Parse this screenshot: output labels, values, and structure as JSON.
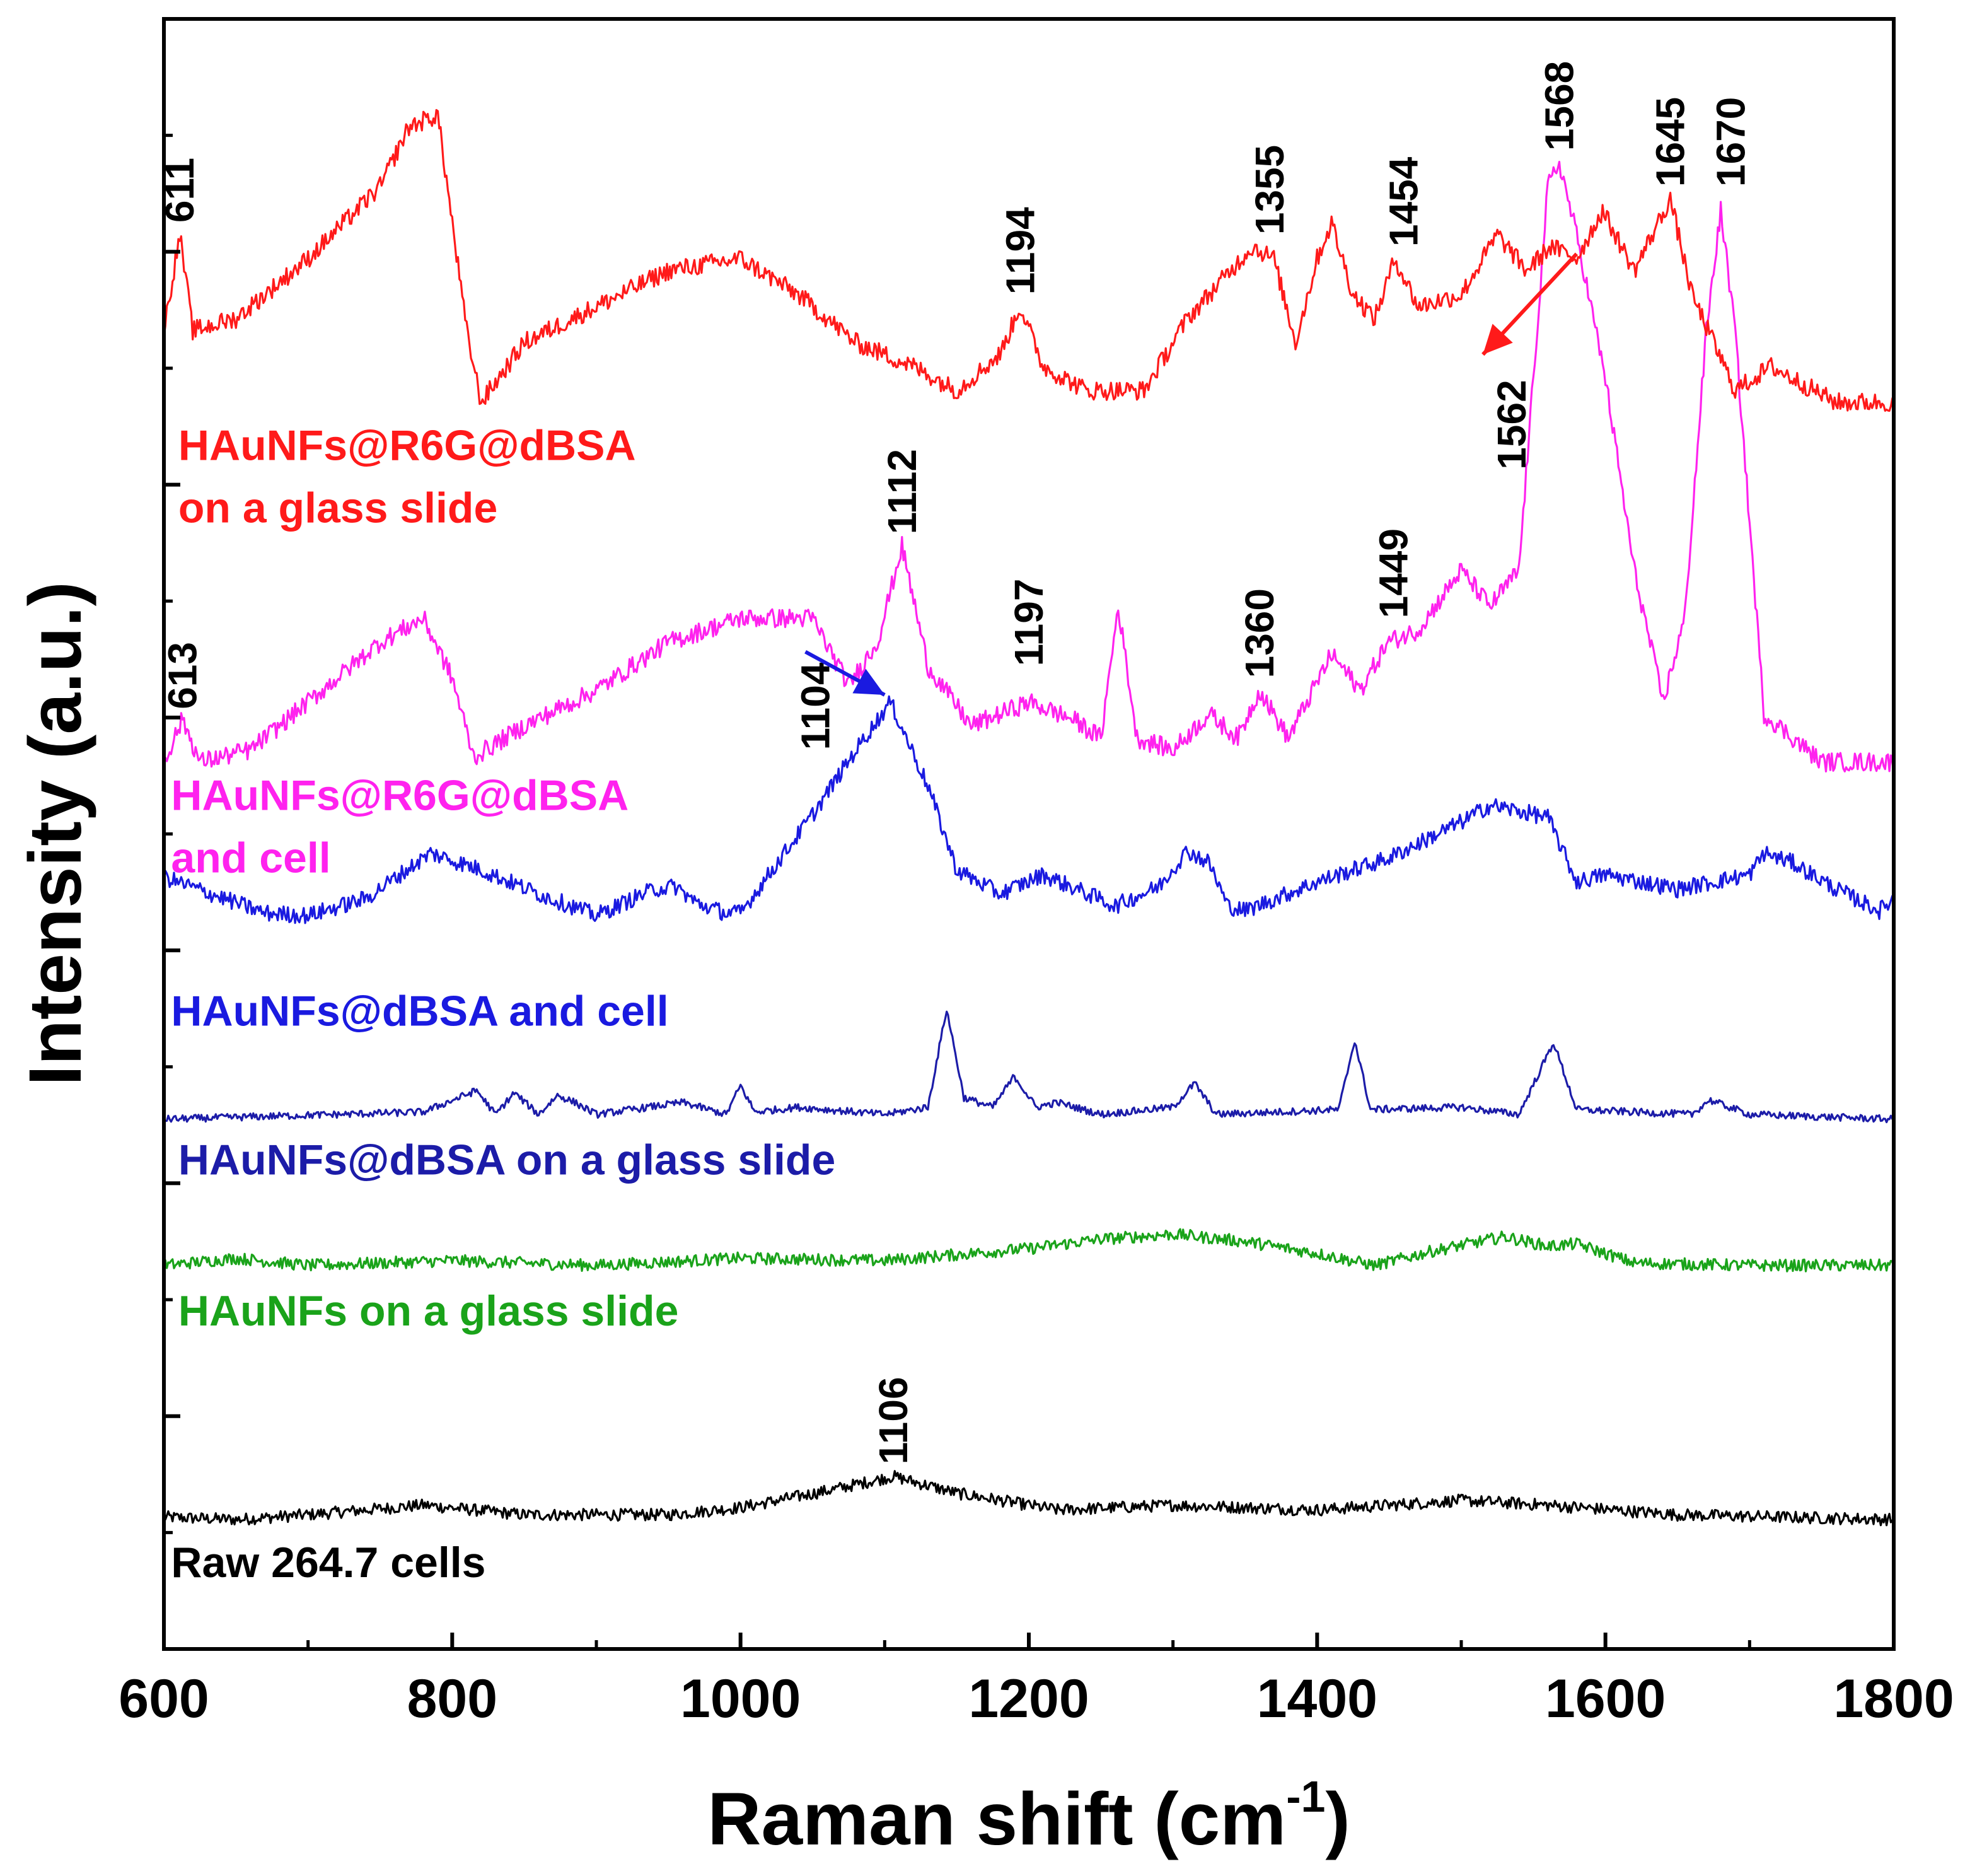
{
  "chart_data": {
    "type": "line",
    "title": "",
    "xlabel": "Raman shift (cm",
    "xlabel_sup": "-1",
    "xlabel_end": ")",
    "ylabel": "Intensity (a.u.)",
    "xlim": [
      600,
      1800
    ],
    "x_ticks": [
      600,
      800,
      1000,
      1200,
      1400,
      1600,
      1800
    ],
    "y_tick_labels": "none",
    "grid": false,
    "legend": "inline labels beside each trace",
    "series": [
      {
        "name": "Raw 264.7 cells",
        "color": "#000000",
        "baseline": 0.5,
        "noise": 0.25,
        "points": [
          [
            600,
            0.5
          ],
          [
            650,
            0.4
          ],
          [
            700,
            0.6
          ],
          [
            780,
            1.0
          ],
          [
            850,
            0.6
          ],
          [
            950,
            0.6
          ],
          [
            1000,
            0.9
          ],
          [
            1060,
            1.6
          ],
          [
            1106,
            2.2
          ],
          [
            1150,
            1.5
          ],
          [
            1220,
            0.8
          ],
          [
            1300,
            1.0
          ],
          [
            1400,
            0.8
          ],
          [
            1500,
            1.2
          ],
          [
            1560,
            1.0
          ],
          [
            1650,
            0.6
          ],
          [
            1800,
            0.4
          ]
        ]
      },
      {
        "name": "HAuNFs on a glass slide",
        "color": "#1aa31a",
        "baseline": 11.0,
        "noise": 0.25,
        "points": [
          [
            600,
            11.0
          ],
          [
            650,
            11.3
          ],
          [
            700,
            11.0
          ],
          [
            800,
            11.2
          ],
          [
            900,
            11.0
          ],
          [
            1000,
            11.3
          ],
          [
            1100,
            11.2
          ],
          [
            1200,
            11.7
          ],
          [
            1250,
            12.1
          ],
          [
            1300,
            12.3
          ],
          [
            1350,
            12.0
          ],
          [
            1400,
            11.5
          ],
          [
            1440,
            11.0
          ],
          [
            1480,
            11.6
          ],
          [
            1530,
            12.2
          ],
          [
            1560,
            11.8
          ],
          [
            1580,
            11.9
          ],
          [
            1620,
            11.1
          ],
          [
            1700,
            11.0
          ],
          [
            1800,
            11.0
          ]
        ]
      },
      {
        "name": "HAuNFs@dBSA on a glass slide",
        "color": "#1c1ca8",
        "baseline": 17.1,
        "noise": 0.15,
        "points": [
          [
            600,
            17.1
          ],
          [
            780,
            17.4
          ],
          [
            817,
            18.3
          ],
          [
            830,
            17.3
          ],
          [
            843,
            18.2
          ],
          [
            860,
            17.3
          ],
          [
            873,
            18.1
          ],
          [
            885,
            17.8
          ],
          [
            900,
            17.3
          ],
          [
            960,
            17.8
          ],
          [
            990,
            17.3
          ],
          [
            1000,
            18.5
          ],
          [
            1010,
            17.4
          ],
          [
            1040,
            17.6
          ],
          [
            1100,
            17.3
          ],
          [
            1130,
            17.6
          ],
          [
            1143,
            21.7
          ],
          [
            1155,
            18.0
          ],
          [
            1175,
            17.6
          ],
          [
            1190,
            18.9
          ],
          [
            1205,
            17.6
          ],
          [
            1220,
            17.8
          ],
          [
            1250,
            17.3
          ],
          [
            1300,
            17.6
          ],
          [
            1315,
            18.6
          ],
          [
            1330,
            17.3
          ],
          [
            1415,
            17.5
          ],
          [
            1426,
            20.4
          ],
          [
            1437,
            17.5
          ],
          [
            1500,
            17.6
          ],
          [
            1540,
            17.3
          ],
          [
            1564,
            20.3
          ],
          [
            1580,
            17.5
          ],
          [
            1660,
            17.3
          ],
          [
            1672,
            17.9
          ],
          [
            1700,
            17.3
          ],
          [
            1800,
            17.1
          ]
        ]
      },
      {
        "name": "HAuNFs@dBSA and cell",
        "color": "#1a1ae0",
        "baseline": 24.0,
        "noise": 0.35,
        "points": [
          [
            600,
            27.2
          ],
          [
            670,
            25.7
          ],
          [
            700,
            25.6
          ],
          [
            740,
            26.3
          ],
          [
            785,
            28.2
          ],
          [
            820,
            27.5
          ],
          [
            860,
            26.5
          ],
          [
            900,
            25.6
          ],
          [
            940,
            26.7
          ],
          [
            955,
            26.8
          ],
          [
            970,
            26.1
          ],
          [
            990,
            25.7
          ],
          [
            1000,
            25.7
          ],
          [
            1050,
            29.8
          ],
          [
            1080,
            32.5
          ],
          [
            1104,
            34.5
          ],
          [
            1130,
            31.0
          ],
          [
            1150,
            27.5
          ],
          [
            1180,
            26.5
          ],
          [
            1210,
            27.3
          ],
          [
            1260,
            26.0
          ],
          [
            1290,
            26.8
          ],
          [
            1310,
            28.3
          ],
          [
            1325,
            27.8
          ],
          [
            1338,
            26.0
          ],
          [
            1350,
            25.8
          ],
          [
            1400,
            27.0
          ],
          [
            1450,
            28.0
          ],
          [
            1500,
            29.5
          ],
          [
            1520,
            30.2
          ],
          [
            1560,
            29.7
          ],
          [
            1580,
            27.0
          ],
          [
            1600,
            27.3
          ],
          [
            1650,
            26.7
          ],
          [
            1700,
            27.3
          ],
          [
            1710,
            28.2
          ],
          [
            1730,
            27.8
          ],
          [
            1760,
            26.7
          ],
          [
            1790,
            25.8
          ],
          [
            1800,
            26.3
          ]
        ]
      },
      {
        "name": "HAuNFs@R6G@dBSA and cell",
        "color": "#ff22ee",
        "baseline": 32.0,
        "noise": 0.4,
        "points": [
          [
            600,
            32.0
          ],
          [
            613,
            33.8
          ],
          [
            625,
            32.0
          ],
          [
            660,
            32.5
          ],
          [
            700,
            34.5
          ],
          [
            750,
            37.0
          ],
          [
            780,
            38.0
          ],
          [
            800,
            35.5
          ],
          [
            815,
            32.2
          ],
          [
            850,
            33.5
          ],
          [
            900,
            35.0
          ],
          [
            950,
            37.0
          ],
          [
            1000,
            38.0
          ],
          [
            1050,
            38.0
          ],
          [
            1075,
            35.2
          ],
          [
            1095,
            37.0
          ],
          [
            1112,
            41.0
          ],
          [
            1130,
            36.0
          ],
          [
            1160,
            33.5
          ],
          [
            1200,
            34.5
          ],
          [
            1230,
            33.8
          ],
          [
            1250,
            33.0
          ],
          [
            1262,
            38.5
          ],
          [
            1275,
            33.0
          ],
          [
            1300,
            32.5
          ],
          [
            1325,
            34.0
          ],
          [
            1345,
            33.0
          ],
          [
            1360,
            35.0
          ],
          [
            1380,
            33.0
          ],
          [
            1410,
            36.5
          ],
          [
            1430,
            35.0
          ],
          [
            1449,
            37.0
          ],
          [
            1470,
            37.5
          ],
          [
            1500,
            40.0
          ],
          [
            1520,
            38.5
          ],
          [
            1540,
            40.0
          ],
          [
            1560,
            56.0
          ],
          [
            1568,
            57.0
          ],
          [
            1580,
            54.0
          ],
          [
            1600,
            48.0
          ],
          [
            1620,
            40.0
          ],
          [
            1640,
            34.5
          ],
          [
            1655,
            38.0
          ],
          [
            1670,
            50.0
          ],
          [
            1680,
            55.0
          ],
          [
            1690,
            50.0
          ],
          [
            1710,
            34.0
          ],
          [
            1750,
            32.0
          ],
          [
            1800,
            32.0
          ]
        ]
      },
      {
        "name": "HAuNFs@R6G@dBSA on a glass slide",
        "color": "#ff1a1a",
        "baseline": 47.0,
        "noise": 0.4,
        "points": [
          [
            600,
            50.0
          ],
          [
            611,
            54.0
          ],
          [
            620,
            50.0
          ],
          [
            650,
            50.5
          ],
          [
            700,
            53.0
          ],
          [
            750,
            56.0
          ],
          [
            770,
            58.5
          ],
          [
            790,
            59.0
          ],
          [
            810,
            50.0
          ],
          [
            820,
            47.0
          ],
          [
            850,
            49.5
          ],
          [
            900,
            51.0
          ],
          [
            950,
            52.5
          ],
          [
            1000,
            53.0
          ],
          [
            1040,
            51.5
          ],
          [
            1080,
            49.5
          ],
          [
            1120,
            48.5
          ],
          [
            1150,
            47.5
          ],
          [
            1180,
            49.0
          ],
          [
            1194,
            51.0
          ],
          [
            1210,
            48.5
          ],
          [
            1240,
            47.5
          ],
          [
            1280,
            47.5
          ],
          [
            1310,
            50.5
          ],
          [
            1355,
            53.5
          ],
          [
            1370,
            53.0
          ],
          [
            1385,
            49.5
          ],
          [
            1400,
            53.0
          ],
          [
            1410,
            54.5
          ],
          [
            1425,
            51.5
          ],
          [
            1440,
            50.5
          ],
          [
            1454,
            53.0
          ],
          [
            1470,
            51.0
          ],
          [
            1500,
            51.5
          ],
          [
            1525,
            54.0
          ],
          [
            1545,
            52.5
          ],
          [
            1562,
            53.5
          ],
          [
            1580,
            53.0
          ],
          [
            1598,
            55.0
          ],
          [
            1620,
            52.5
          ],
          [
            1645,
            55.5
          ],
          [
            1660,
            51.5
          ],
          [
            1690,
            47.5
          ],
          [
            1715,
            48.5
          ],
          [
            1760,
            47.0
          ],
          [
            1800,
            47.0
          ]
        ]
      }
    ],
    "inline_labels": [
      {
        "text": "HAuNFs@R6G@dBSA",
        "series": "HAuNFs@R6G@dBSA on a glass slide",
        "x": 610,
        "y": 44.6
      },
      {
        "text": "on a glass slide",
        "series": "HAuNFs@R6G@dBSA on a glass slide",
        "x": 610,
        "y": 42.0
      },
      {
        "text": "HAuNFs@R6G@dBSA",
        "series": "HAuNFs@R6G@dBSA and cell",
        "x": 605,
        "y": 30.0
      },
      {
        "text": "and cell",
        "series": "HAuNFs@R6G@dBSA and cell",
        "x": 605,
        "y": 27.4
      },
      {
        "text": "HAuNFs@dBSA and cell",
        "series": "HAuNFs@dBSA and cell",
        "x": 605,
        "y": 21.0
      },
      {
        "text": "HAuNFs@dBSA on a glass slide",
        "series": "HAuNFs@dBSA on a glass slide",
        "x": 610,
        "y": 14.8
      },
      {
        "text": "HAuNFs on a glass slide",
        "series": "HAuNFs on a glass slide",
        "x": 610,
        "y": 8.5
      },
      {
        "text": "Raw 264.7 cells",
        "series": "Raw 264.7 cells",
        "x": 605,
        "y": -2.0
      }
    ],
    "peak_annotations": [
      {
        "text": "611",
        "x": 611,
        "y": 54.5
      },
      {
        "text": "1194",
        "x": 1194,
        "y": 51.5
      },
      {
        "text": "1355",
        "x": 1367,
        "y": 54.0
      },
      {
        "text": "1454",
        "x": 1460,
        "y": 53.5
      },
      {
        "text": "1568",
        "x": 1568,
        "y": 57.5
      },
      {
        "text": "1645",
        "x": 1645,
        "y": 56.0
      },
      {
        "text": "1670",
        "x": 1687,
        "y": 56.0
      },
      {
        "text": "1562",
        "x": 1535,
        "y": 44.2
      },
      {
        "text": "613",
        "x": 613,
        "y": 34.2
      },
      {
        "text": "1112",
        "x": 1112,
        "y": 41.5
      },
      {
        "text": "1197",
        "x": 1200,
        "y": 36.0
      },
      {
        "text": "1360",
        "x": 1360,
        "y": 35.5
      },
      {
        "text": "1449",
        "x": 1453,
        "y": 38.0
      },
      {
        "text": "1104",
        "x": 1052,
        "y": 32.5
      },
      {
        "text": "1106",
        "x": 1106,
        "y": 2.7
      }
    ],
    "arrows": [
      {
        "color": "#ff1a1a",
        "from": [
          1580,
          53.2
        ],
        "to": [
          1515,
          49.0
        ]
      },
      {
        "color": "#1a1ae0",
        "from": [
          1045,
          36.6
        ],
        "to": [
          1100,
          34.8
        ]
      }
    ]
  }
}
